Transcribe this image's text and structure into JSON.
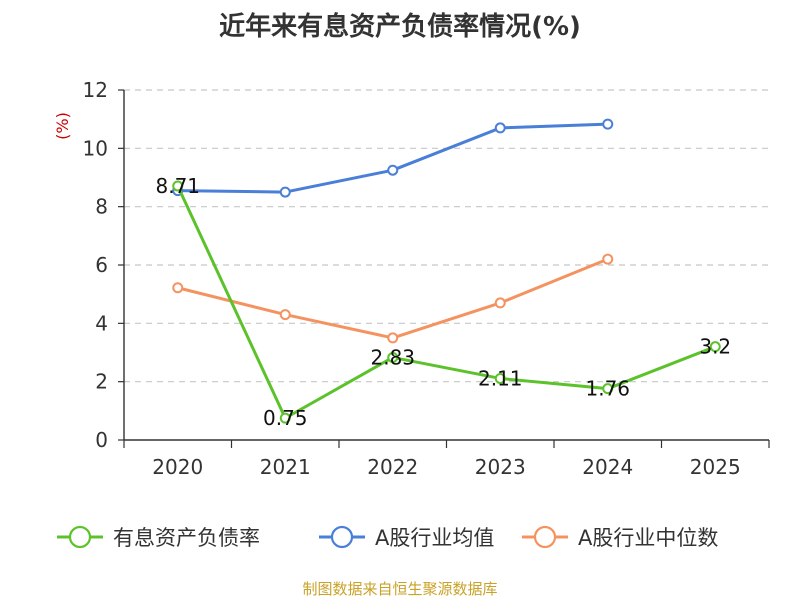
{
  "chart_data": {
    "type": "line",
    "title": "近年来有息资产负债率情况(%)",
    "ylabel": "(%)",
    "xlabel": "",
    "categories": [
      "2020",
      "2021",
      "2022",
      "2023",
      "2024",
      "2025"
    ],
    "ylim": [
      0,
      12
    ],
    "yticks": [
      0,
      2,
      4,
      6,
      8,
      10,
      12
    ],
    "grid": true,
    "legend_position": "bottom",
    "series": [
      {
        "name": "有息资产负债率",
        "color": "#5cc22b",
        "values": [
          8.71,
          0.75,
          2.83,
          2.11,
          1.76,
          3.2
        ],
        "labels": [
          "8.71",
          "0.75",
          "2.83",
          "2.11",
          "1.76",
          "3.2"
        ]
      },
      {
        "name": "A股行业均值",
        "color": "#4a7fd8",
        "values": [
          8.55,
          8.5,
          9.25,
          10.7,
          10.83,
          null
        ]
      },
      {
        "name": "A股行业中位数",
        "color": "#f4935f",
        "values": [
          5.22,
          4.3,
          3.5,
          4.7,
          6.2,
          null
        ]
      }
    ]
  },
  "source": "制图数据来自恒生聚源数据库"
}
